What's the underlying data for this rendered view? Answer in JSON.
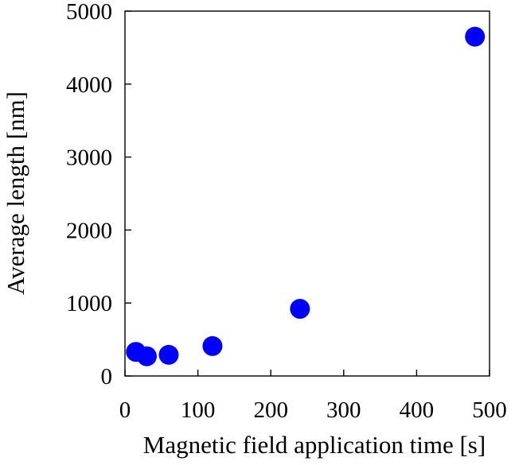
{
  "chart_data": {
    "type": "scatter",
    "title": "",
    "xlabel": "Magnetic field application time [s]",
    "ylabel": "Average length [nm]",
    "xlim": [
      0,
      500
    ],
    "ylim": [
      0,
      5000
    ],
    "xticks": [
      0,
      100,
      200,
      300,
      400,
      500
    ],
    "yticks": [
      0,
      1000,
      2000,
      3000,
      4000,
      5000
    ],
    "grid": false,
    "legend": "none",
    "series": [
      {
        "color": "#0000ff",
        "points": [
          {
            "x": 15,
            "y": 330
          },
          {
            "x": 30,
            "y": 270
          },
          {
            "x": 60,
            "y": 290
          },
          {
            "x": 120,
            "y": 410
          },
          {
            "x": 240,
            "y": 920
          },
          {
            "x": 480,
            "y": 4650
          }
        ]
      }
    ]
  }
}
